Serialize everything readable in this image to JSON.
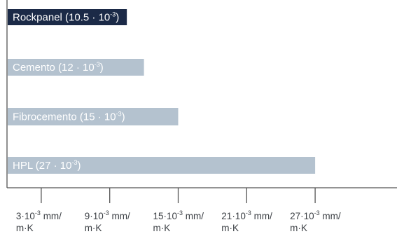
{
  "colors": {
    "highlight_bar": "#1b2a47",
    "bar": "#b4c2cf",
    "axis": "#555555",
    "bar_text": "#ffffff",
    "tick_text": "#3c4045"
  },
  "chart_data": {
    "type": "bar",
    "orientation": "horizontal",
    "title": "",
    "xlabel": "",
    "ylabel": "",
    "exponent_text": "-3",
    "categories": [
      {
        "name": "Rockpanel",
        "value": 10.5,
        "label_pre": "Rockpanel (10.5 · 10",
        "label_post": ")",
        "highlight": true
      },
      {
        "name": "Cemento",
        "value": 12,
        "label_pre": "Cemento (12 · 10",
        "label_post": ")",
        "highlight": false
      },
      {
        "name": "Fibrocemento",
        "value": 15,
        "label_pre": "Fibrocemento (15 · 10",
        "label_post": ")",
        "highlight": false
      },
      {
        "name": "HPL",
        "value": 27,
        "label_pre": "HPL (27 · 10",
        "label_post": ")",
        "highlight": false
      }
    ],
    "xticks": [
      {
        "value": 3,
        "line1_pre": "3·10",
        "line1_post": " mm/",
        "line2": "m·K"
      },
      {
        "value": 9,
        "line1_pre": "9·10",
        "line1_post": " mm/",
        "line2": "m·K"
      },
      {
        "value": 15,
        "line1_pre": "15·10",
        "line1_post": " mm/",
        "line2": "m·K"
      },
      {
        "value": 21,
        "line1_pre": "21·10",
        "line1_post": " mm/",
        "line2": "m·K"
      },
      {
        "value": 27,
        "line1_pre": "27·10",
        "line1_post": " mm/",
        "line2": "m·K"
      }
    ],
    "grid": false
  }
}
